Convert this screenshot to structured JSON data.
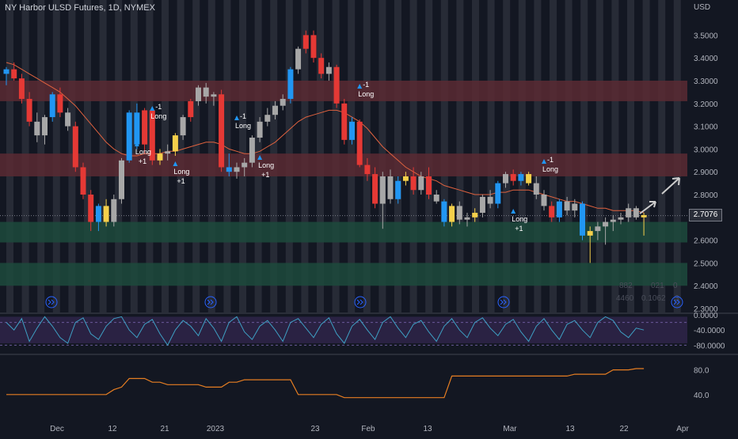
{
  "header": {
    "title": "NY Harbor ULSD Futures, 1D, NYMEX",
    "currency": "USD"
  },
  "last_price": "2.7076",
  "price_axis_labels": [
    "3.5000",
    "3.4000",
    "3.3000",
    "3.2000",
    "3.1000",
    "3.0000",
    "2.9000",
    "2.8000",
    "2.7000",
    "2.6000",
    "2.5000",
    "2.4000",
    "2.3000"
  ],
  "rsi_axis_labels": [
    "0.0000",
    "-40.0000",
    "-80.0000"
  ],
  "osc_axis_labels": [
    "80.0",
    "40.0"
  ],
  "time_axis_labels": [
    "Dec",
    "12",
    "21",
    "2023",
    "23",
    "Feb",
    "13",
    "Mar",
    "13",
    "22",
    "Apr"
  ],
  "faint_values": [
    "882",
    "021",
    "0",
    "4460",
    "0.1062",
    "3"
  ],
  "signals": [
    {
      "top": "",
      "mid": "Long",
      "bot": "+1"
    },
    {
      "top": "-1",
      "mid": "Long",
      "bot": ""
    },
    {
      "top": "",
      "mid": "Long",
      "bot": "+1"
    },
    {
      "top": "-1",
      "mid": "Long",
      "bot": ""
    },
    {
      "top": "",
      "mid": "Long",
      "bot": "+1"
    },
    {
      "top": "-1",
      "mid": "Long",
      "bot": ""
    },
    {
      "top": "",
      "mid": "Long",
      "bot": "+1"
    },
    {
      "top": "-1",
      "mid": "Long",
      "bot": ""
    }
  ],
  "chart_data": {
    "type": "candlestick",
    "instrument": "NY Harbor ULSD Futures",
    "interval": "1D",
    "exchange": "NYMEX",
    "ylim": [
      2.3,
      3.55
    ],
    "zones": [
      {
        "low": 3.21,
        "high": 3.3,
        "color": "#5a2a33"
      },
      {
        "low": 2.88,
        "high": 2.98,
        "color": "#5a2a33"
      },
      {
        "low": 2.59,
        "high": 2.68,
        "color": "#1d4a3c"
      },
      {
        "low": 2.4,
        "high": 2.5,
        "color": "#1d4a3c"
      }
    ],
    "candles": [
      {
        "o": 3.33,
        "h": 3.36,
        "l": 3.28,
        "c": 3.35,
        "t": "up"
      },
      {
        "o": 3.35,
        "h": 3.38,
        "l": 3.3,
        "c": 3.31,
        "t": "down"
      },
      {
        "o": 3.31,
        "h": 3.33,
        "l": 3.2,
        "c": 3.22,
        "t": "down"
      },
      {
        "o": 3.22,
        "h": 3.25,
        "l": 3.1,
        "c": 3.12,
        "t": "down"
      },
      {
        "o": 3.12,
        "h": 3.16,
        "l": 3.03,
        "c": 3.06,
        "t": "flat"
      },
      {
        "o": 3.06,
        "h": 3.15,
        "l": 3.02,
        "c": 3.14,
        "t": "flat"
      },
      {
        "o": 3.14,
        "h": 3.25,
        "l": 3.12,
        "c": 3.24,
        "t": "up"
      },
      {
        "o": 3.24,
        "h": 3.27,
        "l": 3.14,
        "c": 3.16,
        "t": "down"
      },
      {
        "o": 3.16,
        "h": 3.18,
        "l": 3.08,
        "c": 3.1,
        "t": "flat"
      },
      {
        "o": 3.1,
        "h": 3.12,
        "l": 2.9,
        "c": 2.92,
        "t": "down"
      },
      {
        "o": 2.92,
        "h": 2.94,
        "l": 2.78,
        "c": 2.8,
        "t": "down"
      },
      {
        "o": 2.8,
        "h": 2.82,
        "l": 2.64,
        "c": 2.68,
        "t": "down"
      },
      {
        "o": 2.68,
        "h": 2.76,
        "l": 2.64,
        "c": 2.75,
        "t": "up"
      },
      {
        "o": 2.75,
        "h": 2.78,
        "l": 2.66,
        "c": 2.68,
        "t": "yellow"
      },
      {
        "o": 2.68,
        "h": 2.8,
        "l": 2.66,
        "c": 2.78,
        "t": "flat"
      },
      {
        "o": 2.78,
        "h": 2.96,
        "l": 2.76,
        "c": 2.95,
        "t": "flat"
      },
      {
        "o": 2.95,
        "h": 3.17,
        "l": 2.94,
        "c": 3.16,
        "t": "up"
      },
      {
        "o": 3.16,
        "h": 3.2,
        "l": 3.0,
        "c": 3.02,
        "t": "up"
      },
      {
        "o": 3.02,
        "h": 3.18,
        "l": 2.98,
        "c": 3.17,
        "t": "down"
      },
      {
        "o": 3.17,
        "h": 3.18,
        "l": 2.93,
        "c": 2.95,
        "t": "down"
      },
      {
        "o": 2.95,
        "h": 3.0,
        "l": 2.93,
        "c": 2.98,
        "t": "yellow"
      },
      {
        "o": 2.98,
        "h": 3.02,
        "l": 2.95,
        "c": 2.99,
        "t": "flat"
      },
      {
        "o": 2.99,
        "h": 3.07,
        "l": 2.97,
        "c": 3.06,
        "t": "yellow"
      },
      {
        "o": 3.06,
        "h": 3.15,
        "l": 3.04,
        "c": 3.14,
        "t": "flat"
      },
      {
        "o": 3.14,
        "h": 3.22,
        "l": 3.12,
        "c": 3.21,
        "t": "down"
      },
      {
        "o": 3.21,
        "h": 3.28,
        "l": 3.19,
        "c": 3.27,
        "t": "flat"
      },
      {
        "o": 3.27,
        "h": 3.29,
        "l": 3.2,
        "c": 3.23,
        "t": "flat"
      },
      {
        "o": 3.23,
        "h": 3.25,
        "l": 3.19,
        "c": 3.24,
        "t": "flat"
      },
      {
        "o": 3.24,
        "h": 3.26,
        "l": 2.9,
        "c": 2.92,
        "t": "down"
      },
      {
        "o": 2.92,
        "h": 2.98,
        "l": 2.88,
        "c": 2.9,
        "t": "up"
      },
      {
        "o": 2.9,
        "h": 2.94,
        "l": 2.87,
        "c": 2.92,
        "t": "flat"
      },
      {
        "o": 2.92,
        "h": 2.96,
        "l": 2.88,
        "c": 2.94,
        "t": "flat"
      },
      {
        "o": 2.94,
        "h": 3.06,
        "l": 2.92,
        "c": 3.05,
        "t": "flat"
      },
      {
        "o": 3.05,
        "h": 3.14,
        "l": 3.03,
        "c": 3.12,
        "t": "flat"
      },
      {
        "o": 3.12,
        "h": 3.18,
        "l": 3.1,
        "c": 3.15,
        "t": "flat"
      },
      {
        "o": 3.15,
        "h": 3.21,
        "l": 3.13,
        "c": 3.19,
        "t": "flat"
      },
      {
        "o": 3.19,
        "h": 3.24,
        "l": 3.17,
        "c": 3.22,
        "t": "flat"
      },
      {
        "o": 3.22,
        "h": 3.36,
        "l": 3.2,
        "c": 3.35,
        "t": "up"
      },
      {
        "o": 3.35,
        "h": 3.45,
        "l": 3.33,
        "c": 3.44,
        "t": "flat"
      },
      {
        "o": 3.44,
        "h": 3.52,
        "l": 3.42,
        "c": 3.5,
        "t": "down"
      },
      {
        "o": 3.5,
        "h": 3.52,
        "l": 3.38,
        "c": 3.4,
        "t": "down"
      },
      {
        "o": 3.4,
        "h": 3.42,
        "l": 3.31,
        "c": 3.33,
        "t": "down"
      },
      {
        "o": 3.33,
        "h": 3.38,
        "l": 3.3,
        "c": 3.36,
        "t": "flat"
      },
      {
        "o": 3.36,
        "h": 3.37,
        "l": 3.18,
        "c": 3.2,
        "t": "down"
      },
      {
        "o": 3.2,
        "h": 3.22,
        "l": 3.02,
        "c": 3.04,
        "t": "down"
      },
      {
        "o": 3.04,
        "h": 3.14,
        "l": 3.02,
        "c": 3.12,
        "t": "up"
      },
      {
        "o": 3.12,
        "h": 3.13,
        "l": 2.92,
        "c": 2.93,
        "t": "down"
      },
      {
        "o": 2.93,
        "h": 2.96,
        "l": 2.86,
        "c": 2.89,
        "t": "down"
      },
      {
        "o": 2.89,
        "h": 2.92,
        "l": 2.74,
        "c": 2.76,
        "t": "down"
      },
      {
        "o": 2.76,
        "h": 2.9,
        "l": 2.65,
        "c": 2.88,
        "t": "flat"
      },
      {
        "o": 2.88,
        "h": 2.91,
        "l": 2.76,
        "c": 2.78,
        "t": "flat"
      },
      {
        "o": 2.78,
        "h": 2.88,
        "l": 2.76,
        "c": 2.86,
        "t": "up"
      },
      {
        "o": 2.86,
        "h": 2.9,
        "l": 2.84,
        "c": 2.88,
        "t": "yellow"
      },
      {
        "o": 2.88,
        "h": 2.92,
        "l": 2.8,
        "c": 2.82,
        "t": "down"
      },
      {
        "o": 2.82,
        "h": 2.9,
        "l": 2.8,
        "c": 2.88,
        "t": "flat"
      },
      {
        "o": 2.88,
        "h": 2.92,
        "l": 2.78,
        "c": 2.8,
        "t": "down"
      },
      {
        "o": 2.8,
        "h": 2.82,
        "l": 2.76,
        "c": 2.77,
        "t": "flat"
      },
      {
        "o": 2.77,
        "h": 2.78,
        "l": 2.66,
        "c": 2.68,
        "t": "up"
      },
      {
        "o": 2.68,
        "h": 2.76,
        "l": 2.66,
        "c": 2.75,
        "t": "yellow"
      },
      {
        "o": 2.75,
        "h": 2.77,
        "l": 2.67,
        "c": 2.69,
        "t": "flat"
      },
      {
        "o": 2.69,
        "h": 2.72,
        "l": 2.66,
        "c": 2.7,
        "t": "flat"
      },
      {
        "o": 2.7,
        "h": 2.74,
        "l": 2.68,
        "c": 2.72,
        "t": "yellow"
      },
      {
        "o": 2.72,
        "h": 2.8,
        "l": 2.7,
        "c": 2.79,
        "t": "flat"
      },
      {
        "o": 2.79,
        "h": 2.82,
        "l": 2.74,
        "c": 2.76,
        "t": "flat"
      },
      {
        "o": 2.76,
        "h": 2.86,
        "l": 2.74,
        "c": 2.85,
        "t": "up"
      },
      {
        "o": 2.85,
        "h": 2.9,
        "l": 2.83,
        "c": 2.89,
        "t": "flat"
      },
      {
        "o": 2.89,
        "h": 2.91,
        "l": 2.84,
        "c": 2.86,
        "t": "down"
      },
      {
        "o": 2.86,
        "h": 2.9,
        "l": 2.84,
        "c": 2.89,
        "t": "up"
      },
      {
        "o": 2.89,
        "h": 2.9,
        "l": 2.84,
        "c": 2.85,
        "t": "yellow"
      },
      {
        "o": 2.85,
        "h": 2.88,
        "l": 2.78,
        "c": 2.8,
        "t": "flat"
      },
      {
        "o": 2.8,
        "h": 2.82,
        "l": 2.73,
        "c": 2.75,
        "t": "flat"
      },
      {
        "o": 2.75,
        "h": 2.77,
        "l": 2.68,
        "c": 2.7,
        "t": "down"
      },
      {
        "o": 2.7,
        "h": 2.78,
        "l": 2.68,
        "c": 2.77,
        "t": "up"
      },
      {
        "o": 2.77,
        "h": 2.79,
        "l": 2.71,
        "c": 2.73,
        "t": "flat"
      },
      {
        "o": 2.73,
        "h": 2.78,
        "l": 2.7,
        "c": 2.76,
        "t": "flat"
      },
      {
        "o": 2.76,
        "h": 2.77,
        "l": 2.6,
        "c": 2.62,
        "t": "up"
      },
      {
        "o": 2.62,
        "h": 2.66,
        "l": 2.5,
        "c": 2.64,
        "t": "yellow"
      },
      {
        "o": 2.64,
        "h": 2.68,
        "l": 2.6,
        "c": 2.66,
        "t": "flat"
      },
      {
        "o": 2.66,
        "h": 2.7,
        "l": 2.58,
        "c": 2.68,
        "t": "flat"
      },
      {
        "o": 2.68,
        "h": 2.71,
        "l": 2.64,
        "c": 2.69,
        "t": "flat"
      },
      {
        "o": 2.69,
        "h": 2.72,
        "l": 2.67,
        "c": 2.7,
        "t": "flat"
      },
      {
        "o": 2.7,
        "h": 2.76,
        "l": 2.68,
        "c": 2.74,
        "t": "flat"
      },
      {
        "o": 2.74,
        "h": 2.75,
        "l": 2.69,
        "c": 2.7,
        "t": "flat"
      },
      {
        "o": 2.7,
        "h": 2.72,
        "l": 2.62,
        "c": 2.71,
        "t": "yellow"
      }
    ],
    "ma": [
      3.38,
      3.37,
      3.35,
      3.33,
      3.31,
      3.29,
      3.27,
      3.25,
      3.22,
      3.19,
      3.15,
      3.11,
      3.07,
      3.03,
      3.0,
      2.98,
      2.97,
      2.97,
      2.98,
      2.98,
      2.98,
      2.99,
      2.99,
      3.0,
      3.01,
      3.02,
      3.03,
      3.03,
      3.02,
      3.0,
      2.99,
      2.98,
      2.98,
      2.99,
      3.01,
      3.03,
      3.06,
      3.09,
      3.12,
      3.14,
      3.15,
      3.16,
      3.17,
      3.17,
      3.16,
      3.14,
      3.12,
      3.09,
      3.05,
      3.01,
      2.98,
      2.95,
      2.92,
      2.9,
      2.88,
      2.87,
      2.86,
      2.84,
      2.83,
      2.82,
      2.81,
      2.8,
      2.8,
      2.8,
      2.81,
      2.81,
      2.82,
      2.82,
      2.82,
      2.81,
      2.8,
      2.79,
      2.78,
      2.77,
      2.77,
      2.76,
      2.75,
      2.74,
      2.74,
      2.73,
      2.73,
      2.73,
      2.73,
      2.72
    ],
    "rsi": [
      -20,
      -40,
      -10,
      -70,
      -35,
      -5,
      -30,
      -60,
      -75,
      -20,
      -8,
      -50,
      -65,
      -30,
      -10,
      -5,
      -40,
      -60,
      -25,
      -12,
      -50,
      -80,
      -40,
      -15,
      -30,
      -55,
      -10,
      -35,
      -70,
      -20,
      -5,
      -45,
      -65,
      -30,
      -15,
      -40,
      -70,
      -20,
      -10,
      -35,
      -60,
      -25,
      -8,
      -50,
      -75,
      -30,
      -12,
      -40,
      -65,
      -20,
      -5,
      -35,
      -60,
      -25,
      -15,
      -45,
      -70,
      -30,
      -10,
      -40,
      -60,
      -20,
      -8,
      -35,
      -55,
      -25,
      -12,
      -45,
      -70,
      -30,
      -10,
      -40,
      -65,
      -25,
      -15,
      -40,
      -60,
      -20,
      -5,
      -15,
      -45,
      -60,
      -35,
      -40
    ],
    "osc": [
      40,
      40,
      40,
      40,
      40,
      40,
      40,
      40,
      40,
      40,
      40,
      40,
      40,
      40,
      48,
      52,
      66,
      66,
      66,
      60,
      60,
      56,
      56,
      56,
      56,
      56,
      52,
      52,
      52,
      60,
      60,
      64,
      64,
      64,
      64,
      64,
      64,
      64,
      40,
      40,
      40,
      40,
      40,
      40,
      35,
      35,
      35,
      35,
      35,
      35,
      35,
      35,
      35,
      35,
      35,
      35,
      35,
      35,
      70,
      70,
      70,
      70,
      70,
      70,
      70,
      70,
      70,
      70,
      70,
      70,
      70,
      70,
      70,
      70,
      73,
      73,
      73,
      73,
      73,
      80,
      80,
      80,
      82,
      82
    ]
  }
}
